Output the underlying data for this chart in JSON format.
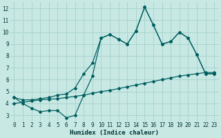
{
  "xlabel": "Humidex (Indice chaleur)",
  "bg_color": "#c8e8e4",
  "grid_color": "#aad4d0",
  "line_color": "#006060",
  "xlim": [
    -0.5,
    23.5
  ],
  "ylim": [
    2.5,
    12.5
  ],
  "xticks": [
    0,
    1,
    2,
    3,
    4,
    5,
    6,
    7,
    8,
    9,
    10,
    11,
    12,
    13,
    14,
    15,
    16,
    17,
    18,
    19,
    20,
    21,
    22,
    23
  ],
  "yticks": [
    3,
    4,
    5,
    6,
    7,
    8,
    9,
    10,
    11,
    12
  ],
  "line1_x": [
    0,
    1,
    2,
    3,
    4,
    5,
    6,
    7,
    8,
    9,
    10,
    11,
    12,
    13,
    14,
    15,
    16,
    17,
    18,
    19,
    20,
    21,
    22,
    23
  ],
  "line1_y": [
    4.5,
    4.0,
    3.6,
    3.3,
    3.4,
    3.4,
    2.8,
    3.0,
    4.7,
    6.3,
    9.5,
    9.8,
    9.4,
    9.0,
    10.1,
    12.1,
    10.6,
    9.0,
    9.2,
    10.0,
    9.5,
    8.1,
    6.5,
    6.5
  ],
  "line2_x": [
    0,
    1,
    2,
    3,
    4,
    5,
    6,
    7,
    8,
    9,
    10,
    11,
    12,
    13,
    14,
    15,
    16,
    17,
    18,
    19,
    20,
    21,
    22,
    23
  ],
  "line2_y": [
    4.0,
    4.1,
    4.2,
    4.3,
    4.35,
    4.4,
    4.5,
    4.6,
    4.7,
    4.85,
    5.0,
    5.1,
    5.25,
    5.4,
    5.55,
    5.7,
    5.85,
    6.0,
    6.15,
    6.3,
    6.4,
    6.5,
    6.6,
    6.6
  ],
  "line3_x": [
    0,
    1,
    2,
    3,
    4,
    5,
    6,
    7,
    8,
    9,
    10,
    11,
    12,
    13,
    14,
    15,
    16,
    17,
    18,
    19,
    20,
    21,
    22,
    23
  ],
  "line3_y": [
    4.5,
    4.3,
    4.3,
    4.4,
    4.5,
    4.7,
    4.8,
    5.3,
    6.5,
    7.4,
    9.5,
    9.8,
    9.4,
    9.0,
    10.1,
    12.1,
    10.6,
    9.0,
    9.2,
    10.0,
    9.5,
    8.1,
    6.5,
    6.5
  ]
}
